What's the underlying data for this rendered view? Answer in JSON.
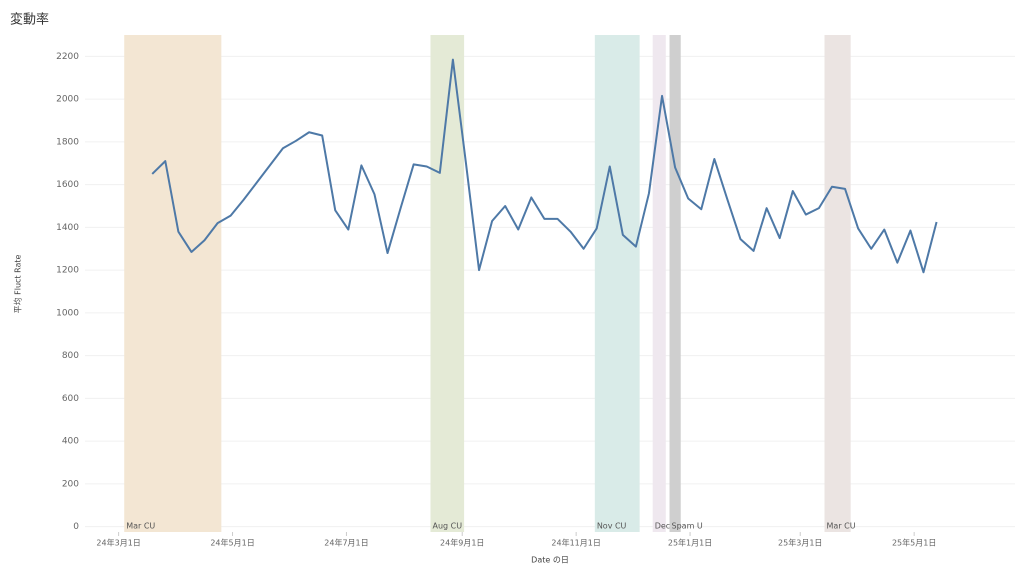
{
  "chart_data": {
    "type": "line",
    "title": "変動率",
    "x_label": "Date の日",
    "y_label": "平均 Fluct Rate",
    "x": [
      "2024-03-19",
      "2024-03-26",
      "2024-04-02",
      "2024-04-09",
      "2024-04-16",
      "2024-04-23",
      "2024-04-30",
      "2024-05-07",
      "2024-05-14",
      "2024-05-21",
      "2024-05-28",
      "2024-06-04",
      "2024-06-11",
      "2024-06-18",
      "2024-06-25",
      "2024-07-02",
      "2024-07-09",
      "2024-07-16",
      "2024-07-23",
      "2024-07-30",
      "2024-08-06",
      "2024-08-13",
      "2024-08-20",
      "2024-08-27",
      "2024-09-03",
      "2024-09-10",
      "2024-09-17",
      "2024-09-24",
      "2024-10-01",
      "2024-10-08",
      "2024-10-15",
      "2024-10-22",
      "2024-10-29",
      "2024-11-05",
      "2024-11-12",
      "2024-11-19",
      "2024-11-26",
      "2024-12-03",
      "2024-12-10",
      "2024-12-17",
      "2024-12-24",
      "2024-12-31",
      "2025-01-07",
      "2025-01-14",
      "2025-01-21",
      "2025-01-28",
      "2025-02-04",
      "2025-02-11",
      "2025-02-18",
      "2025-02-25",
      "2025-03-04",
      "2025-03-11",
      "2025-03-18",
      "2025-03-25",
      "2025-04-01",
      "2025-04-08",
      "2025-04-15",
      "2025-04-22",
      "2025-04-29",
      "2025-05-06",
      "2025-05-13"
    ],
    "series": [
      {
        "color": "#4e79a7",
        "values": [
          1650,
          1710,
          1380,
          1285,
          1340,
          1420,
          1455,
          1530,
          1610,
          1690,
          1770,
          1805,
          1845,
          1830,
          1480,
          1390,
          1690,
          1555,
          1280,
          1490,
          1695,
          1685,
          1655,
          2185,
          1700,
          1200,
          1430,
          1500,
          1390,
          1540,
          1440,
          1440,
          1380,
          1300,
          1395,
          1685,
          1365,
          1310,
          1560,
          2015,
          1680,
          1535,
          1485,
          1720,
          1530,
          1345,
          1290,
          1490,
          1350,
          1570,
          1460,
          1490,
          1590,
          1580,
          1395,
          1300,
          1390,
          1235,
          1385,
          1190,
          1425
        ]
      }
    ],
    "bands": [
      {
        "label": "Mar CU",
        "start": "2024-03-04",
        "end": "2024-04-25",
        "color": "#f3e6d3"
      },
      {
        "label": "Aug CU",
        "start": "2024-08-15",
        "end": "2024-09-02",
        "color": "#e4ead6"
      },
      {
        "label": "Nov CU",
        "start": "2024-11-11",
        "end": "2024-12-05",
        "color": "#d9ebe8"
      },
      {
        "label": "Dec",
        "start": "2024-12-12",
        "end": "2024-12-19",
        "color": "#efe8ef"
      },
      {
        "label": "Spam U",
        "start": "2024-12-21",
        "end": "2024-12-27",
        "color": "#cfcfcf"
      },
      {
        "label": "Mar CU",
        "start": "2025-03-14",
        "end": "2025-03-28",
        "color": "#ebe4e2"
      }
    ],
    "xlim": [
      "2024-02-12",
      "2025-06-24"
    ],
    "xticks": [
      {
        "value": "2024-03-01",
        "label": "24年3月1日"
      },
      {
        "value": "2024-05-01",
        "label": "24年5月1日"
      },
      {
        "value": "2024-07-01",
        "label": "24年7月1日"
      },
      {
        "value": "2024-09-01",
        "label": "24年9月1日"
      },
      {
        "value": "2024-11-01",
        "label": "24年11月1日"
      },
      {
        "value": "2025-01-01",
        "label": "25年1月1日"
      },
      {
        "value": "2025-03-01",
        "label": "25年3月1日"
      },
      {
        "value": "2025-05-01",
        "label": "25年5月1日"
      }
    ],
    "ylim": [
      -25,
      2300
    ],
    "yticks": [
      0,
      200,
      400,
      600,
      800,
      1000,
      1200,
      1400,
      1600,
      1800,
      2000,
      2200
    ],
    "grid": true
  }
}
